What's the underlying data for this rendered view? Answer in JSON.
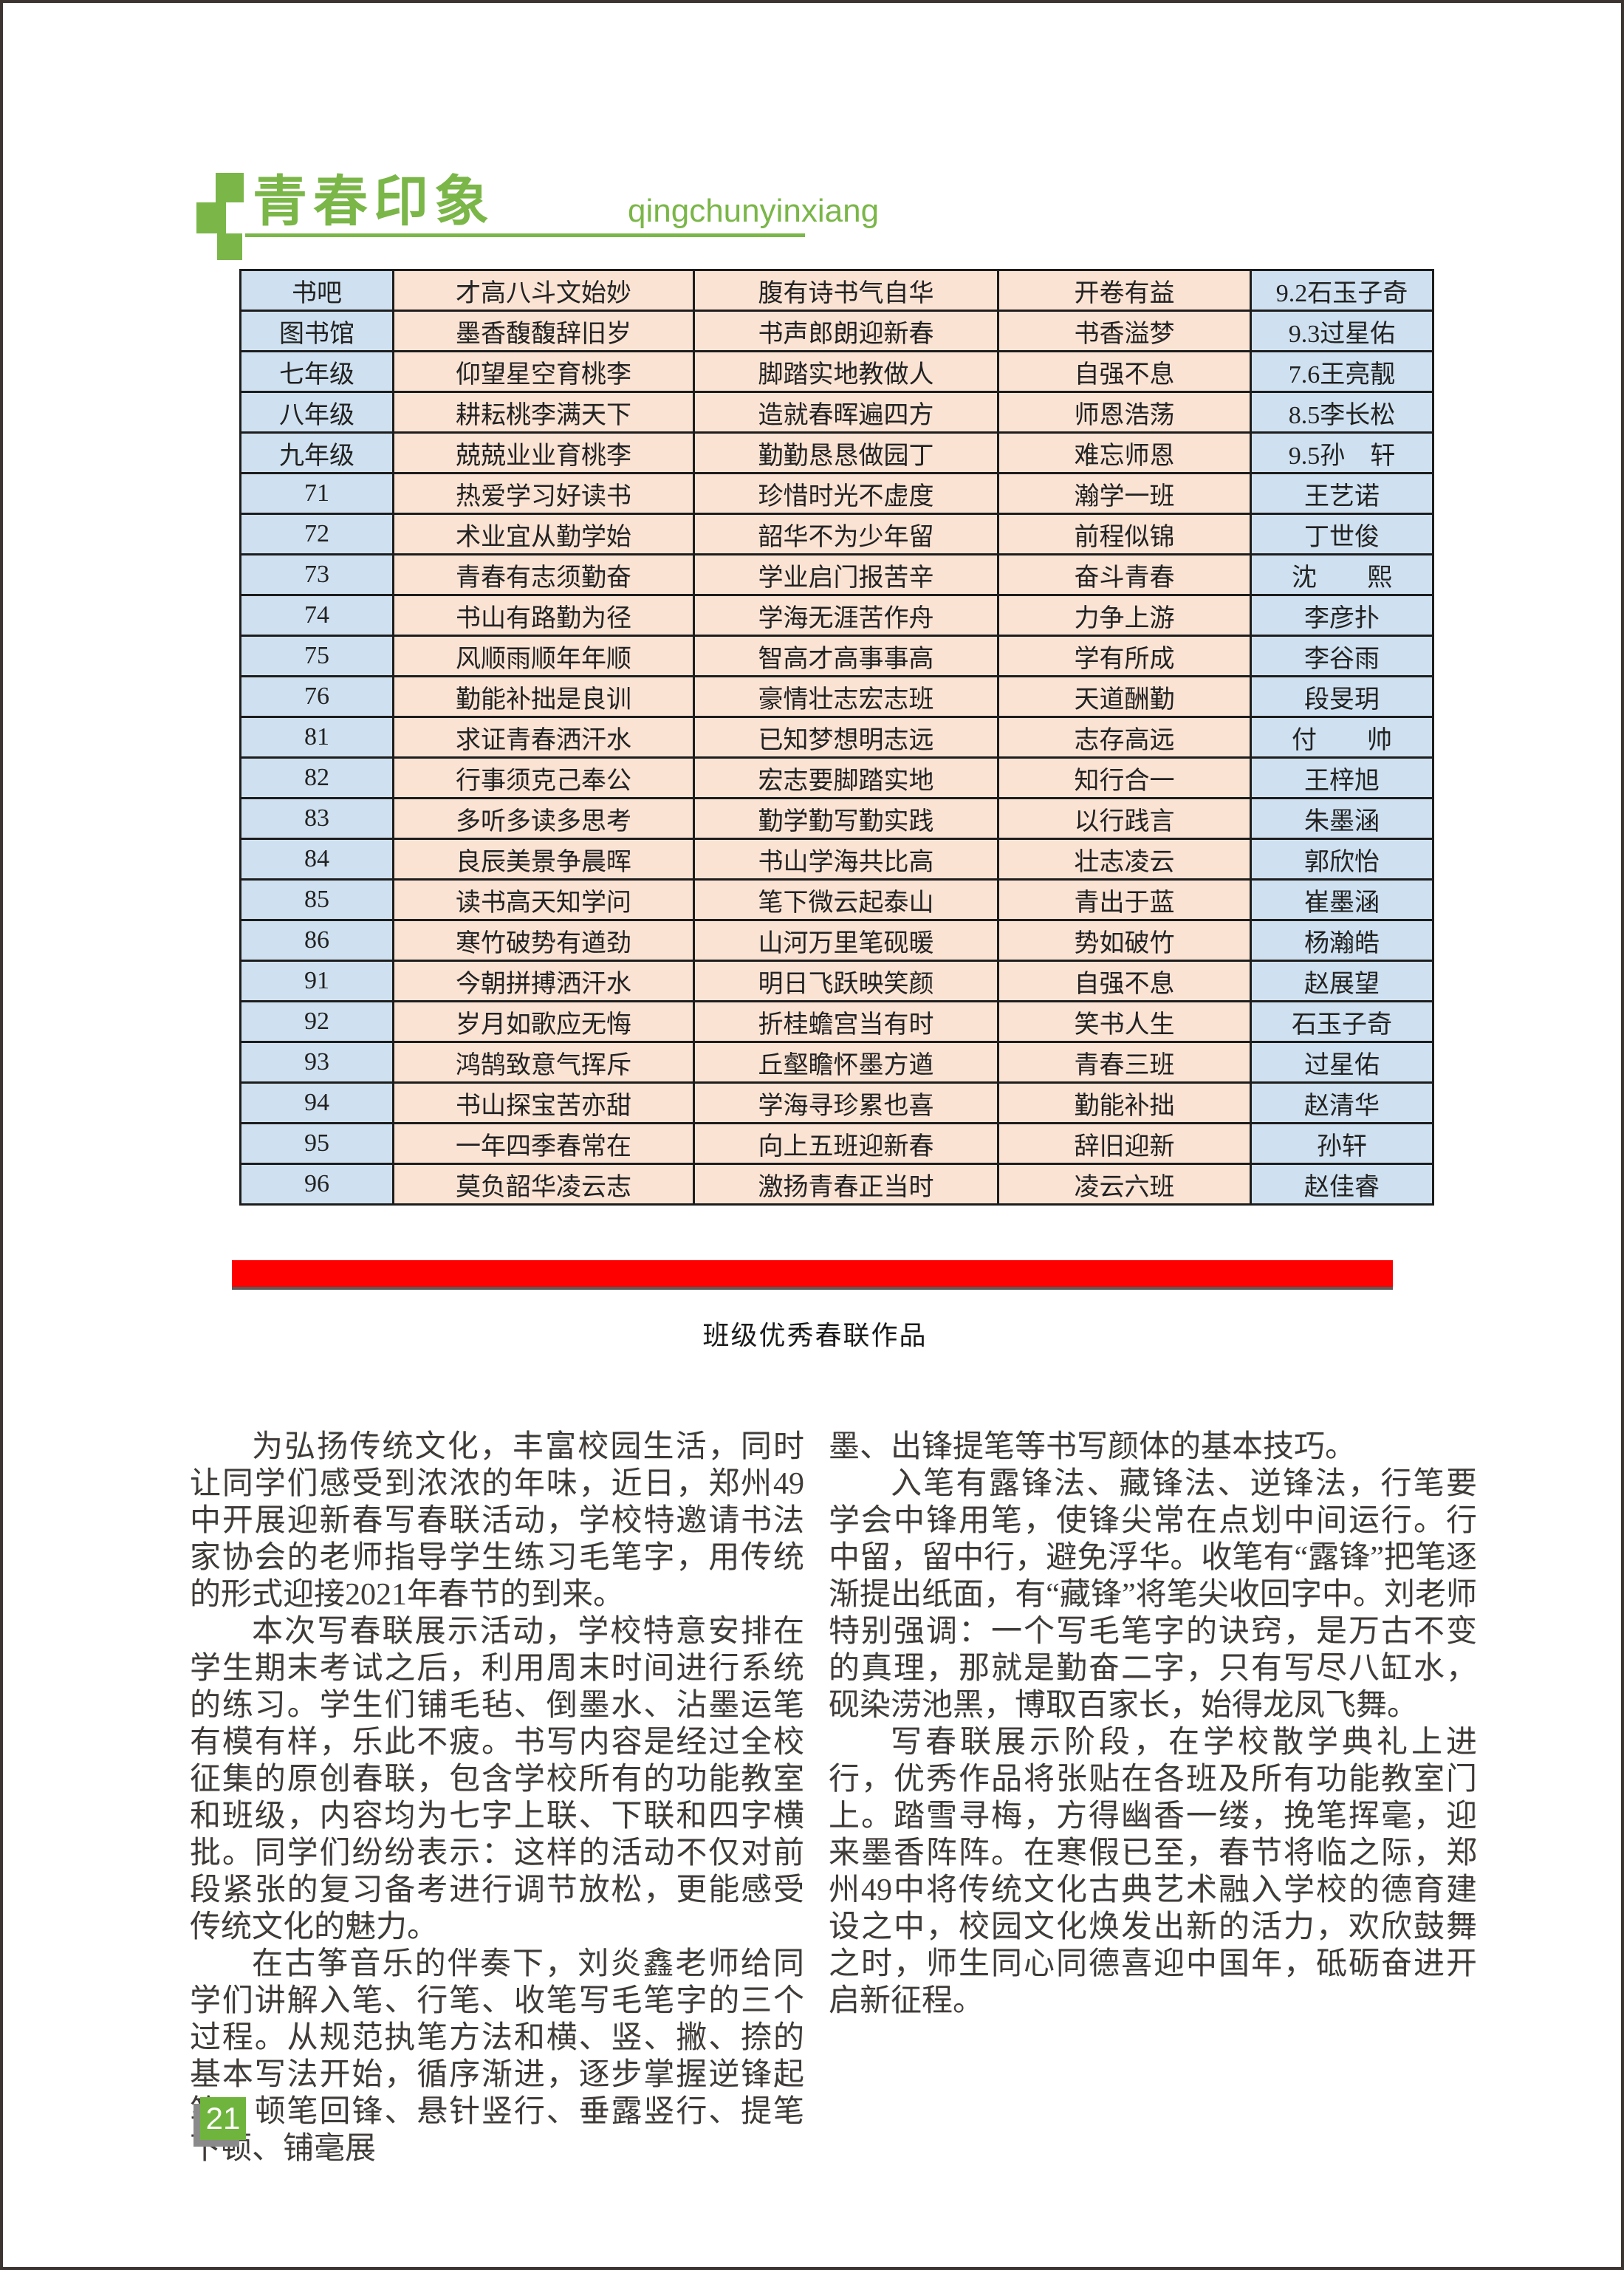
{
  "logo": {
    "title": "青春印象",
    "subtitle": "qingchunyinxiang",
    "accent_color": "#7ab648"
  },
  "table": {
    "cell_colors": {
      "class_col": "#cfe1f0",
      "couplet_cols": "#fbe3d4"
    },
    "footer_bar_color": "#fe0000",
    "rows": [
      {
        "class": "书吧",
        "line1": "才高八斗文始妙",
        "line2": "腹有诗书气自华",
        "banner": "开卷有益",
        "author": "9.2石玉子奇"
      },
      {
        "class": "图书馆",
        "line1": "墨香馥馥辞旧岁",
        "line2": "书声郎朗迎新春",
        "banner": "书香溢梦",
        "author": "9.3过星佑"
      },
      {
        "class": "七年级",
        "line1": "仰望星空育桃李",
        "line2": "脚踏实地教做人",
        "banner": "自强不息",
        "author": "7.6王亮靓"
      },
      {
        "class": "八年级",
        "line1": "耕耘桃李满天下",
        "line2": "造就春晖遍四方",
        "banner": "师恩浩荡",
        "author": "8.5李长松"
      },
      {
        "class": "九年级",
        "line1": "兢兢业业育桃李",
        "line2": "勤勤恳恳做园丁",
        "banner": "难忘师恩",
        "author": "9.5孙　轩"
      },
      {
        "class": "71",
        "line1": "热爱学习好读书",
        "line2": "珍惜时光不虚度",
        "banner": "瀚学一班",
        "author": "王艺诺"
      },
      {
        "class": "72",
        "line1": "术业宜从勤学始",
        "line2": "韶华不为少年留",
        "banner": "前程似锦",
        "author": "丁世俊"
      },
      {
        "class": "73",
        "line1": "青春有志须勤奋",
        "line2": "学业启门报苦辛",
        "banner": "奋斗青春",
        "author": "沈　　熙"
      },
      {
        "class": "74",
        "line1": "书山有路勤为径",
        "line2": "学海无涯苦作舟",
        "banner": "力争上游",
        "author": "李彦扑"
      },
      {
        "class": "75",
        "line1": "风顺雨顺年年顺",
        "line2": "智高才高事事高",
        "banner": "学有所成",
        "author": "李谷雨"
      },
      {
        "class": "76",
        "line1": "勤能补拙是良训",
        "line2": "豪情壮志宏志班",
        "banner": "天道酬勤",
        "author": "段旻玥"
      },
      {
        "class": "81",
        "line1": "求证青春洒汗水",
        "line2": "已知梦想明志远",
        "banner": "志存高远",
        "author": "付　　帅"
      },
      {
        "class": "82",
        "line1": "行事须克己奉公",
        "line2": "宏志要脚踏实地",
        "banner": "知行合一",
        "author": "王梓旭"
      },
      {
        "class": "83",
        "line1": "多听多读多思考",
        "line2": "勤学勤写勤实践",
        "banner": "以行践言",
        "author": "朱墨涵"
      },
      {
        "class": "84",
        "line1": "良辰美景争晨晖",
        "line2": "书山学海共比高",
        "banner": "壮志凌云",
        "author": "郭欣怡"
      },
      {
        "class": "85",
        "line1": "读书高天知学问",
        "line2": "笔下微云起泰山",
        "banner": "青出于蓝",
        "author": "崔墨涵"
      },
      {
        "class": "86",
        "line1": "寒竹破势有遒劲",
        "line2": "山河万里笔砚暖",
        "banner": "势如破竹",
        "author": "杨瀚皓"
      },
      {
        "class": "91",
        "line1": "今朝拼搏洒汗水",
        "line2": "明日飞跃映笑颜",
        "banner": "自强不息",
        "author": "赵展望"
      },
      {
        "class": "92",
        "line1": "岁月如歌应无悔",
        "line2": "折桂蟾宫当有时",
        "banner": "笑书人生",
        "author": "石玉子奇"
      },
      {
        "class": "93",
        "line1": "鸿鹄致意气挥斥",
        "line2": "丘壑瞻怀墨方遒",
        "banner": "青春三班",
        "author": "过星佑"
      },
      {
        "class": "94",
        "line1": "书山探宝苦亦甜",
        "line2": "学海寻珍累也喜",
        "banner": "勤能补拙",
        "author": "赵清华"
      },
      {
        "class": "95",
        "line1": "一年四季春常在",
        "line2": "向上五班迎新春",
        "banner": "辞旧迎新",
        "author": "孙轩"
      },
      {
        "class": "96",
        "line1": "莫负韶华凌云志",
        "line2": "激扬青春正当时",
        "banner": "凌云六班",
        "author": "赵佳睿"
      }
    ]
  },
  "caption": "班级优秀春联作品",
  "article": {
    "left_paragraphs": [
      {
        "indent": true,
        "text": "为弘扬传统文化，丰富校园生活，同时让同学们感受到浓浓的年味，近日，郑州49中开展迎新春写春联活动，学校特邀请书法家协会的老师指导学生练习毛笔字，用传统的形式迎接2021年春节的到来。"
      },
      {
        "indent": true,
        "text": "本次写春联展示活动，学校特意安排在学生期末考试之后，利用周末时间进行系统的练习。学生们铺毛毡、倒墨水、沾墨运笔有模有样，乐此不疲。书写内容是经过全校征集的原创春联，包含学校所有的功能教室和班级，内容均为七字上联、下联和四字横批。同学们纷纷表示：这样的活动不仅对前段紧张的复习备考进行调节放松，更能感受传统文化的魅力。"
      },
      {
        "indent": true,
        "text": "在古筝音乐的伴奏下，刘炎鑫老师给同学们讲解入笔、行笔、收笔写毛笔字的三个过程。从规范执笔方法和横、竖、撇、捺的基本写法开始，循序渐进，逐步掌握逆锋起笔、顿笔回锋、悬针竖行、垂露竖行、提笔下顿、铺毫展"
      }
    ],
    "right_paragraphs": [
      {
        "indent": false,
        "text": "墨、出锋提笔等书写颜体的基本技巧。"
      },
      {
        "indent": true,
        "text": "入笔有露锋法、藏锋法、逆锋法，行笔要学会中锋用笔，使锋尖常在点划中间运行。行中留，留中行，避免浮华。收笔有“露锋”把笔逐渐提出纸面，有“藏锋”将笔尖收回字中。刘老师特别强调：一个写毛笔字的诀窍，是万古不变的真理，那就是勤奋二字，只有写尽八缸水，砚染涝池黑，博取百家长，始得龙凤飞舞。"
      },
      {
        "indent": true,
        "text": "写春联展示阶段，在学校散学典礼上进行，优秀作品将张贴在各班及所有功能教室门上。踏雪寻梅，方得幽香一缕，挽笔挥毫，迎来墨香阵阵。在寒假已至，春节将临之际，郑州49中将传统文化古典艺术融入学校的德育建设之中，校园文化焕发出新的活力，欢欣鼓舞之时，师生同心同德喜迎中国年，砥砺奋进开启新征程。"
      }
    ]
  },
  "page_number": "21"
}
